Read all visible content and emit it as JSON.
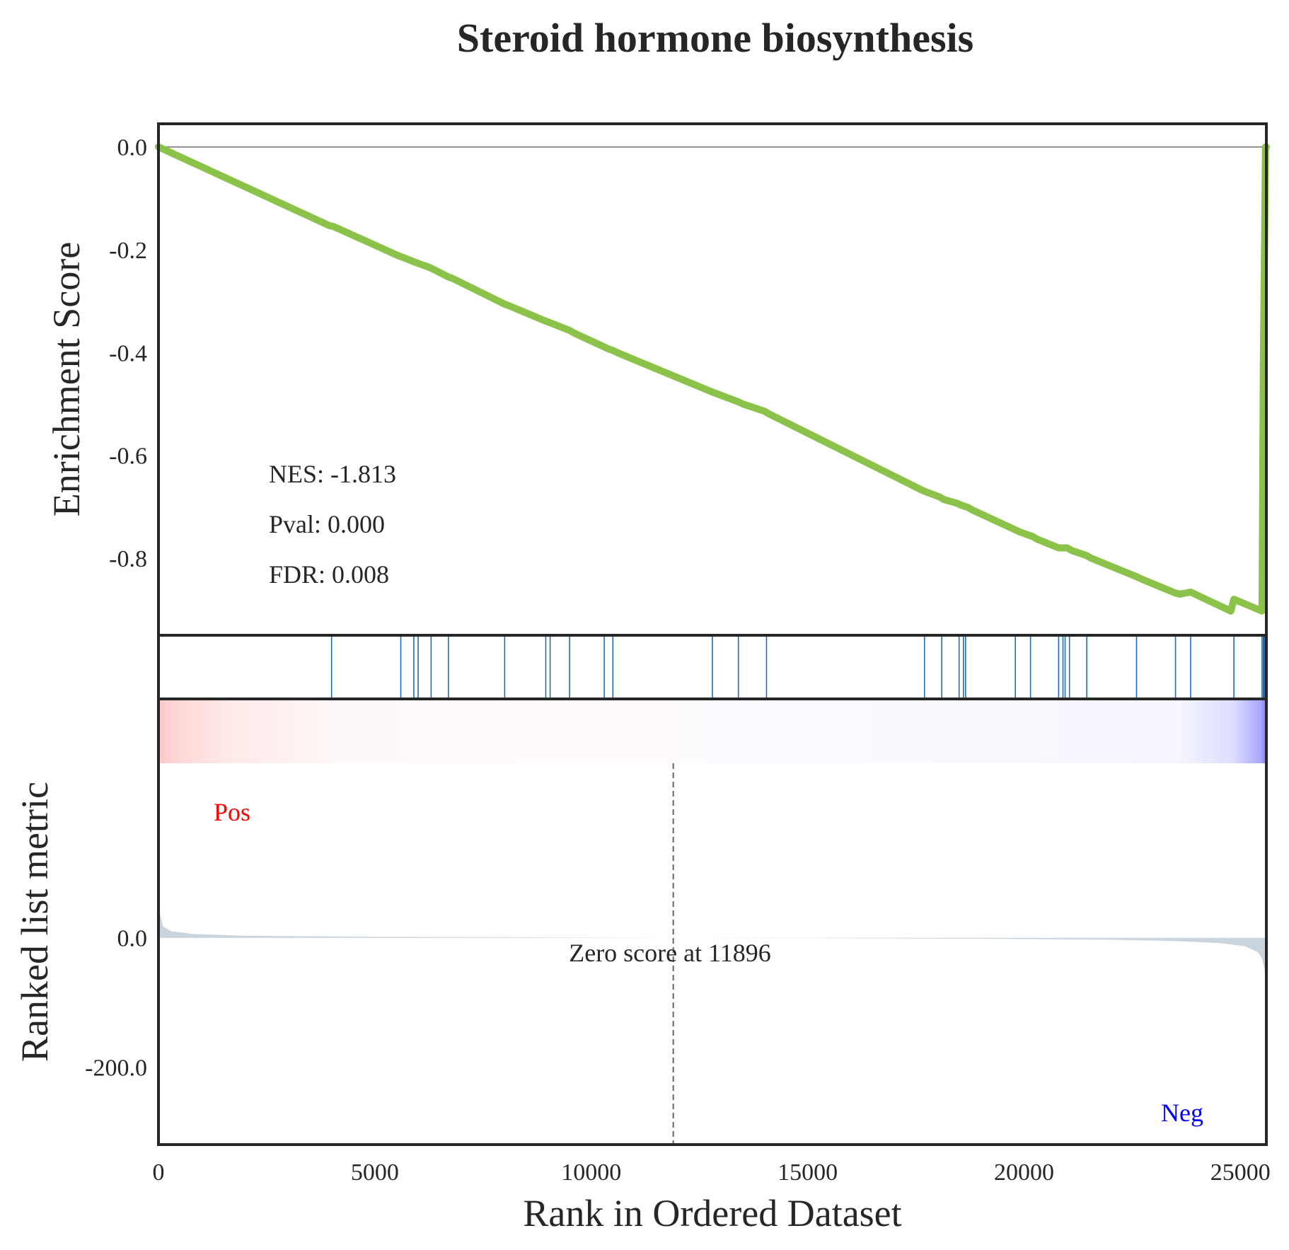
{
  "chart_data": {
    "type": "line",
    "title": "Steroid hormone biosynthesis",
    "xlabel": "Rank in Ordered Dataset",
    "xlim": [
      0,
      25600
    ],
    "xticks": [
      0,
      5000,
      10000,
      15000,
      20000,
      25000
    ],
    "xtick_labels": [
      "0",
      "5000",
      "10000",
      "15000",
      "20000",
      "25000"
    ],
    "es_panel": {
      "ylabel": "Enrichment Score",
      "ylim": [
        -0.95,
        0.045
      ],
      "yticks": [
        0.0,
        -0.2,
        -0.4,
        -0.6,
        -0.8
      ],
      "ytick_labels": [
        "0.0",
        "-0.2",
        "-0.4",
        "-0.6",
        "-0.8"
      ],
      "zero_line": 0.0,
      "series": [
        {
          "name": "Running Enrichment Score",
          "x": [
            0,
            3950,
            4050,
            5550,
            5650,
            5950,
            6050,
            6250,
            6350,
            6700,
            6800,
            8000,
            8100,
            8950,
            9050,
            9500,
            9600,
            10300,
            10400,
            10500,
            10600,
            12800,
            12900,
            13400,
            13500,
            14000,
            14100,
            17600,
            17700,
            18050,
            18150,
            18450,
            18550,
            18700,
            18800,
            19800,
            19900,
            20200,
            20300,
            20800,
            20900,
            21000,
            21100,
            21450,
            21550,
            22600,
            22700,
            23500,
            23600,
            23850,
            23950,
            24780,
            24850,
            25500,
            25530,
            25580,
            25600
          ],
          "y": [
            0.0,
            -0.153,
            -0.155,
            -0.212,
            -0.215,
            -0.225,
            -0.228,
            -0.234,
            -0.238,
            -0.253,
            -0.256,
            -0.306,
            -0.309,
            -0.339,
            -0.342,
            -0.357,
            -0.362,
            -0.389,
            -0.393,
            -0.396,
            -0.4,
            -0.477,
            -0.48,
            -0.496,
            -0.5,
            -0.514,
            -0.519,
            -0.666,
            -0.67,
            -0.681,
            -0.686,
            -0.693,
            -0.697,
            -0.701,
            -0.706,
            -0.745,
            -0.749,
            -0.758,
            -0.763,
            -0.78,
            -0.78,
            -0.78,
            -0.785,
            -0.795,
            -0.8,
            -0.836,
            -0.84,
            -0.868,
            -0.87,
            -0.866,
            -0.87,
            -0.903,
            -0.88,
            -0.903,
            -0.43,
            -0.0,
            -0.0
          ],
          "color": "#8bc34a"
        }
      ],
      "annotations": [
        "NES: -1.813",
        "Pval: 0.000",
        "FDR: 0.008"
      ]
    },
    "hits": [
      4000,
      5600,
      5900,
      6000,
      6300,
      6700,
      8000,
      8950,
      9050,
      9500,
      10300,
      10500,
      12800,
      13400,
      14050,
      17700,
      18100,
      18500,
      18600,
      18650,
      19800,
      20150,
      20800,
      20900,
      20950,
      21050,
      21450,
      22600,
      23500,
      23850,
      24850,
      25500,
      25530,
      25550,
      25570,
      25590
    ],
    "hit_color": "#1f6db5",
    "ranked_metric_panel": {
      "ylabel": "Ranked list metric",
      "ylim": [
        -320,
        270
      ],
      "yticks": [
        0.0,
        -200.0
      ],
      "ytick_labels": [
        "0.0",
        "-200.0"
      ],
      "fill_color": "#c9d4dc",
      "x": [
        0,
        100,
        300,
        800,
        2000,
        5000,
        8000,
        11896,
        15000,
        19000,
        22000,
        23500,
        24500,
        25100,
        25400,
        25500,
        25560,
        25590,
        25600
      ],
      "values": [
        50,
        18,
        10,
        6,
        3,
        1.5,
        0.8,
        0,
        -0.5,
        -1.5,
        -3,
        -5,
        -8,
        -13,
        -22,
        -32,
        -50,
        -80,
        -100
      ],
      "zero_score_rank": 11896,
      "zero_score_label": "Zero score at 11896",
      "pos_label": "Pos",
      "pos_color": "#ff0000",
      "neg_label": "Neg",
      "neg_color": "#0000ff"
    },
    "heatmap_strip": {
      "colormap": "red-white-blue",
      "pos_color": "#ff0000",
      "neg_color": "#0000ff"
    }
  }
}
